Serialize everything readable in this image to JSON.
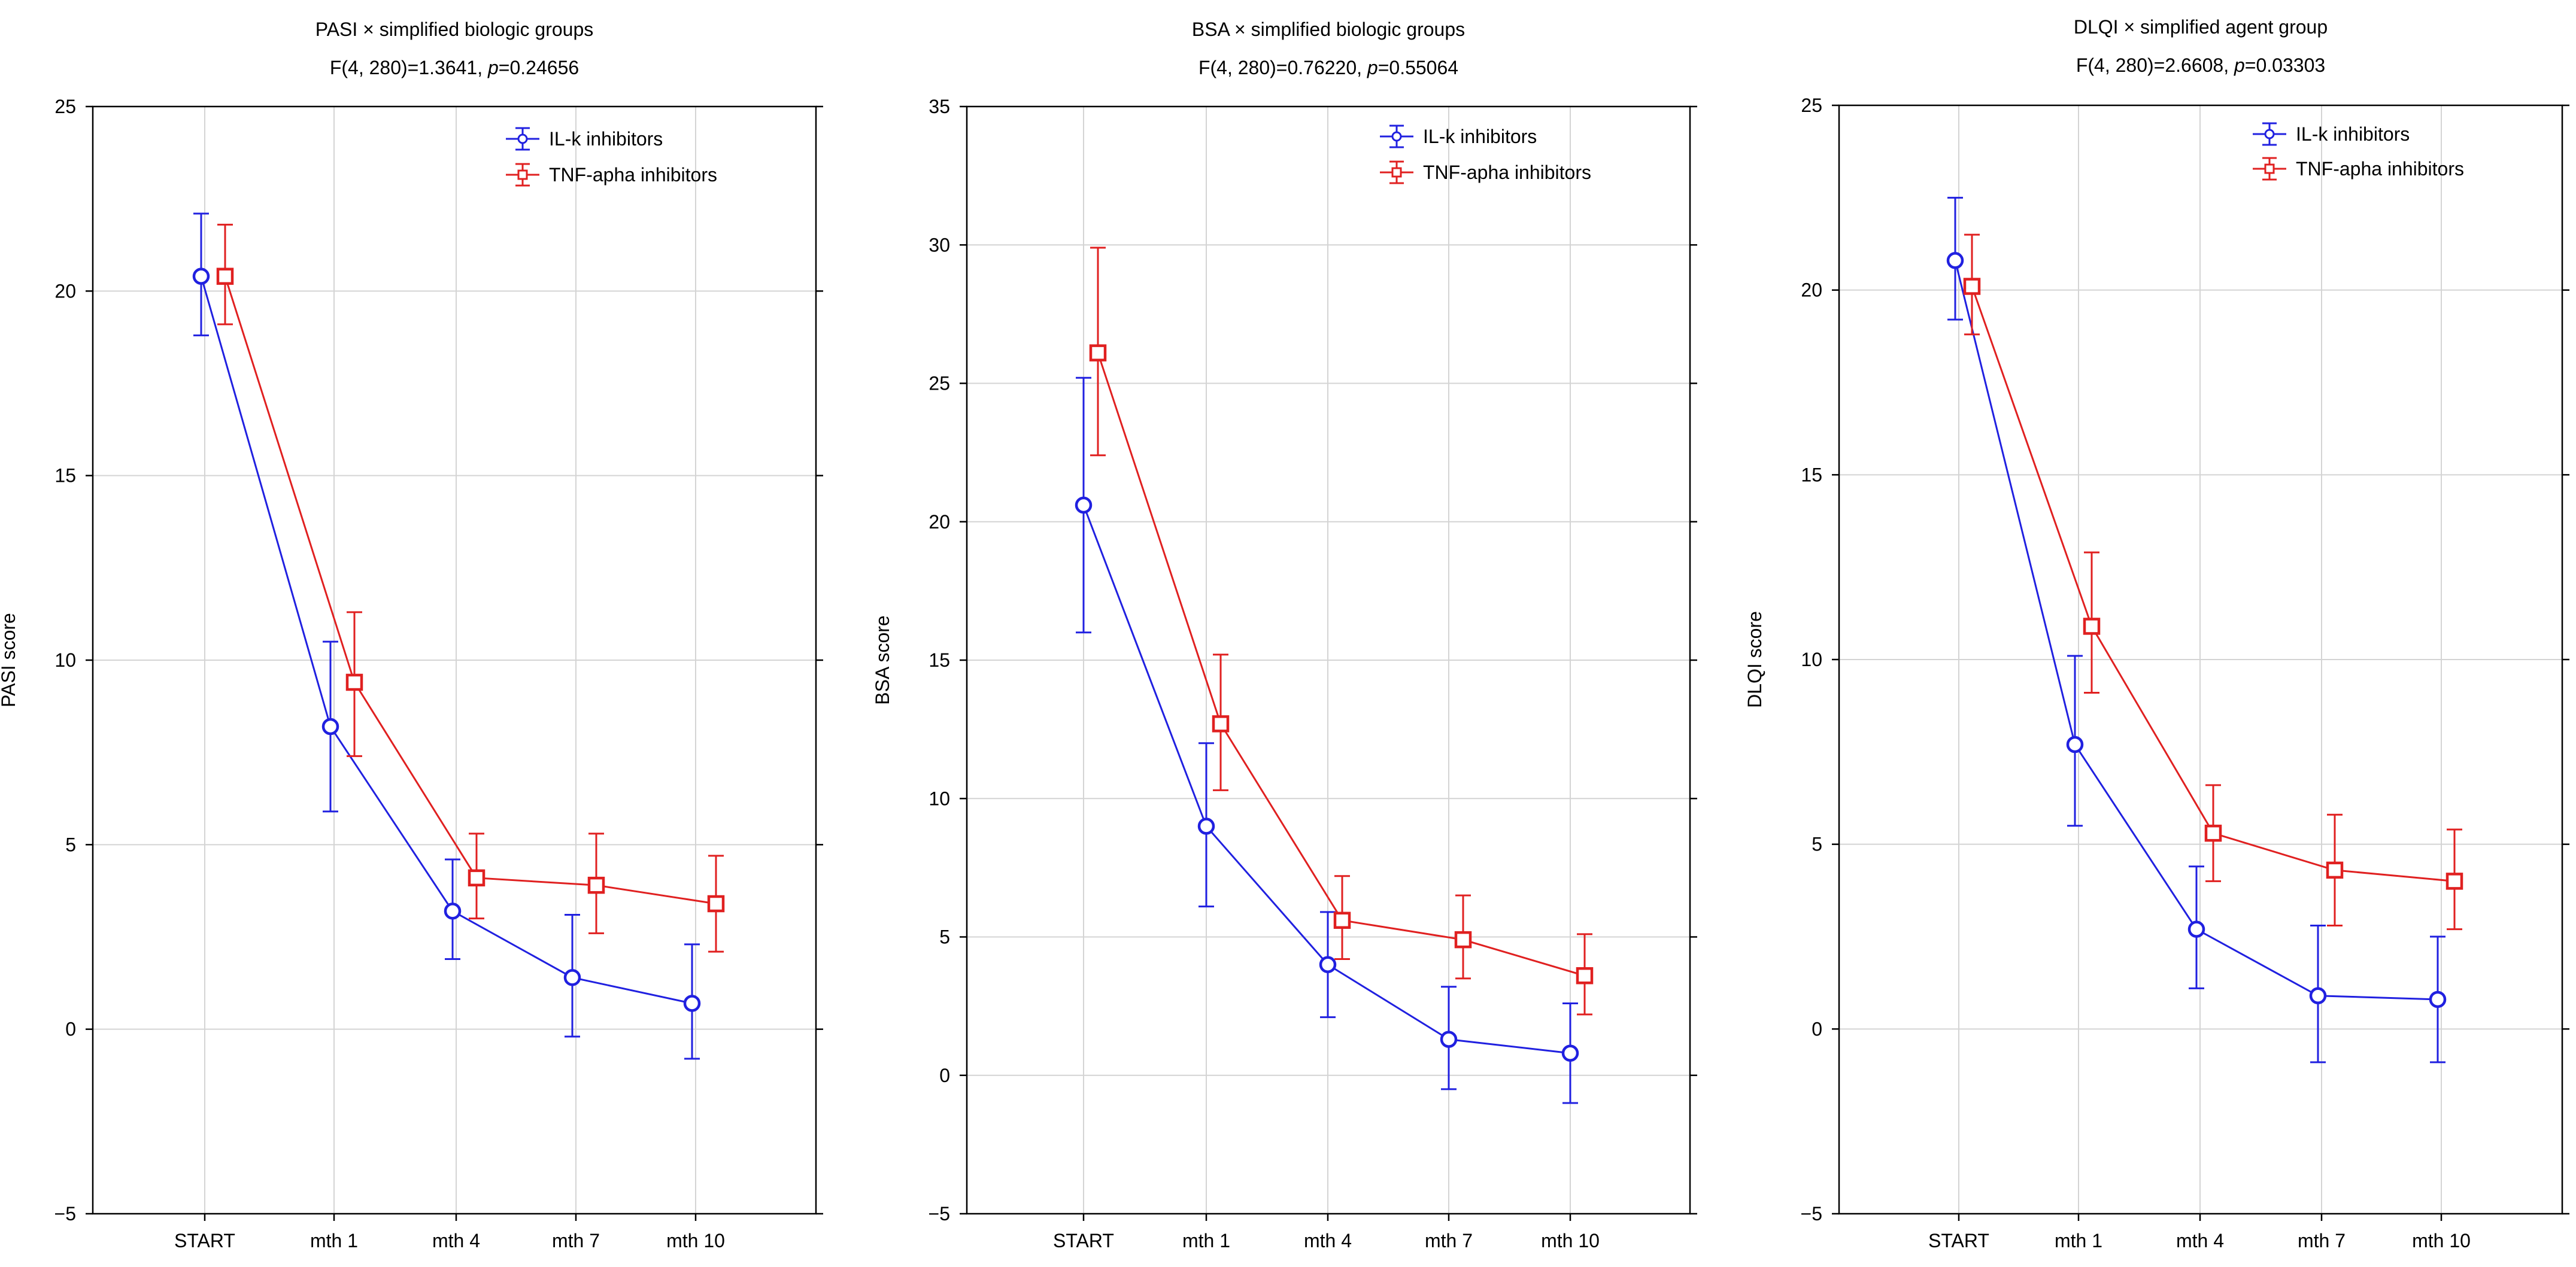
{
  "colors": {
    "il": "#2020e0",
    "tnf": "#e02020",
    "grid": "#d4d4d4",
    "axis": "#000000"
  },
  "icons": {
    "il": "circle-marker-icon",
    "tnf": "square-marker-icon"
  },
  "chart_data": [
    {
      "type": "line",
      "title": "PASI × simplified biologic groups",
      "stat_prefix": "F(4, 280)=1.3641, ",
      "stat_p_label": "p",
      "stat_p_value": "=0.24656",
      "xlabel": "",
      "ylabel": "PASI score",
      "ylim": [
        -5,
        25
      ],
      "yticks": [
        -5,
        0,
        5,
        10,
        15,
        20,
        25
      ],
      "ytick_labels": [
        "−5",
        "0",
        "5",
        "10",
        "15",
        "20",
        "25"
      ],
      "categories": [
        "START",
        "mth 1",
        "mth 4",
        "mth 7",
        "mth 10"
      ],
      "grid": true,
      "legend": "top-right",
      "series": [
        {
          "name": "IL-k inhibitors",
          "marker": "circle",
          "color": "#2020e0",
          "values": [
            20.4,
            8.2,
            3.2,
            1.4,
            0.7
          ],
          "lower": [
            18.8,
            5.9,
            1.9,
            -0.2,
            -0.8
          ],
          "upper": [
            22.1,
            10.5,
            4.6,
            3.1,
            2.3
          ]
        },
        {
          "name": "TNF-apha inhibitors",
          "marker": "square",
          "color": "#e02020",
          "values": [
            20.4,
            9.4,
            4.1,
            3.9,
            3.4
          ],
          "lower": [
            19.1,
            7.4,
            3.0,
            2.6,
            2.1
          ],
          "upper": [
            21.8,
            11.3,
            5.3,
            5.3,
            4.7
          ]
        }
      ]
    },
    {
      "type": "line",
      "title": "BSA × simplified biologic groups",
      "stat_prefix": "F(4, 280)=0.76220, ",
      "stat_p_label": "p",
      "stat_p_value": "=0.55064",
      "xlabel": "",
      "ylabel": "BSA score",
      "ylim": [
        -5,
        35
      ],
      "yticks": [
        -5,
        0,
        5,
        10,
        15,
        20,
        25,
        30,
        35
      ],
      "ytick_labels": [
        "−5",
        "0",
        "5",
        "10",
        "15",
        "20",
        "25",
        "30",
        "35"
      ],
      "categories": [
        "START",
        "mth 1",
        "mth 4",
        "mth 7",
        "mth 10"
      ],
      "grid": true,
      "legend": "top-right",
      "series": [
        {
          "name": "IL-k inhibitors",
          "marker": "circle",
          "color": "#2020e0",
          "values": [
            20.6,
            9.0,
            4.0,
            1.3,
            0.8
          ],
          "lower": [
            16.0,
            6.1,
            2.1,
            -0.5,
            -1.0
          ],
          "upper": [
            25.2,
            12.0,
            5.9,
            3.2,
            2.6
          ]
        },
        {
          "name": "TNF-apha inhibitors",
          "marker": "square",
          "color": "#e02020",
          "values": [
            26.1,
            12.7,
            5.6,
            4.9,
            3.6
          ],
          "lower": [
            22.4,
            10.3,
            4.2,
            3.5,
            2.2
          ],
          "upper": [
            29.9,
            15.2,
            7.2,
            6.5,
            5.1
          ]
        }
      ]
    },
    {
      "type": "line",
      "title": "DLQI × simplified agent group",
      "stat_prefix": "F(4, 280)=2.6608, ",
      "stat_p_label": "p",
      "stat_p_value": "=0.03303",
      "xlabel": "",
      "ylabel": "DLQI score",
      "ylim": [
        -5,
        25
      ],
      "yticks": [
        -5,
        0,
        5,
        10,
        15,
        20,
        25
      ],
      "ytick_labels": [
        "−5",
        "0",
        "5",
        "10",
        "15",
        "20",
        "25"
      ],
      "categories": [
        "START",
        "mth 1",
        "mth 4",
        "mth 7",
        "mth 10"
      ],
      "grid": true,
      "legend": "top-right",
      "series": [
        {
          "name": "IL-k inhibitors",
          "marker": "circle",
          "color": "#2020e0",
          "values": [
            20.8,
            7.7,
            2.7,
            0.9,
            0.8
          ],
          "lower": [
            19.2,
            5.5,
            1.1,
            -0.9,
            -0.9
          ],
          "upper": [
            22.5,
            10.1,
            4.4,
            2.8,
            2.5
          ]
        },
        {
          "name": "TNF-apha inhibitors",
          "marker": "square",
          "color": "#e02020",
          "values": [
            20.1,
            10.9,
            5.3,
            4.3,
            4.0
          ],
          "lower": [
            18.8,
            9.1,
            4.0,
            2.8,
            2.7
          ],
          "upper": [
            21.5,
            12.9,
            6.6,
            5.8,
            5.4
          ]
        }
      ]
    }
  ]
}
